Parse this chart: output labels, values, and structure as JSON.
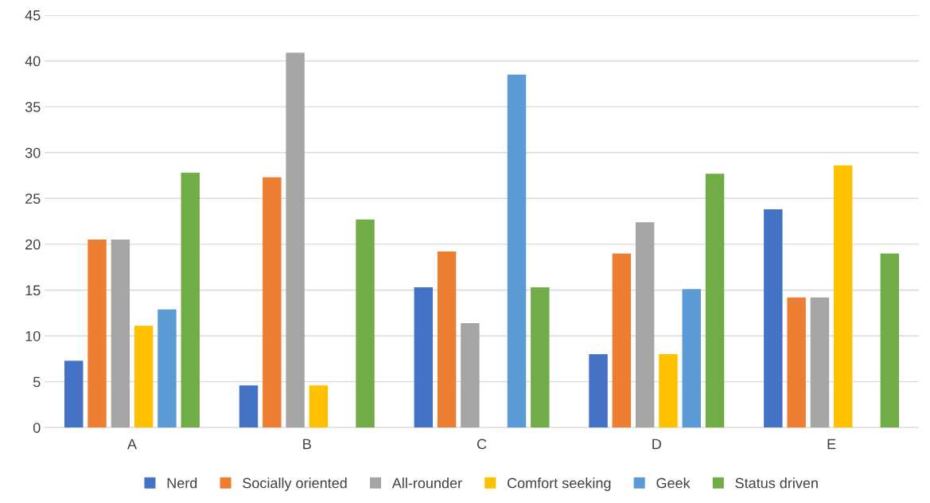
{
  "chart_data": {
    "type": "bar",
    "categories": [
      "A",
      "B",
      "C",
      "D",
      "E"
    ],
    "series": [
      {
        "name": "Nerd",
        "color": "#4472c4",
        "values": [
          7.3,
          4.6,
          15.3,
          8.0,
          23.8
        ]
      },
      {
        "name": "Socially oriented",
        "color": "#ed7d31",
        "values": [
          20.5,
          27.3,
          19.2,
          19.0,
          14.2
        ]
      },
      {
        "name": "All-rounder",
        "color": "#a5a5a5",
        "values": [
          20.5,
          40.9,
          11.4,
          22.4,
          14.2
        ]
      },
      {
        "name": "Comfort seeking",
        "color": "#ffc000",
        "values": [
          11.1,
          4.6,
          0,
          8.0,
          28.6
        ]
      },
      {
        "name": "Geek",
        "color": "#5b9bd5",
        "values": [
          12.9,
          0,
          38.5,
          15.1,
          0
        ]
      },
      {
        "name": "Status driven",
        "color": "#70ad47",
        "values": [
          27.8,
          22.7,
          15.3,
          27.7,
          19.0
        ]
      }
    ],
    "ylim": [
      0,
      45
    ],
    "yticks": [
      0,
      5,
      10,
      15,
      20,
      25,
      30,
      35,
      40,
      45
    ],
    "grid": "y",
    "legend": "bottom"
  }
}
